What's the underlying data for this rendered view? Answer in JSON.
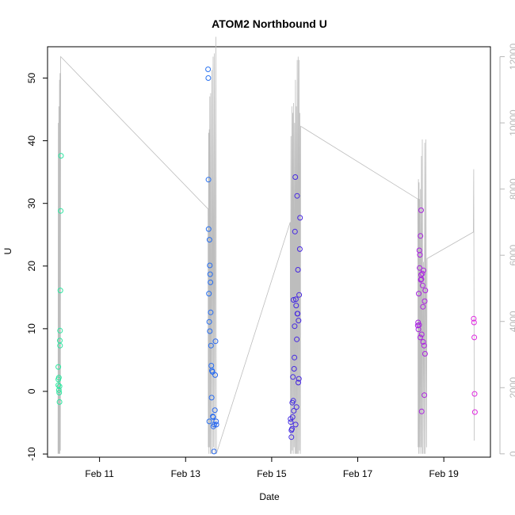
{
  "chart_data": {
    "type": "scatter",
    "title": "ATOM2 Northbound U",
    "xlabel": "Date",
    "ylabel": "U",
    "xlim": [
      "2013-02-09 19:00",
      "2013-02-20 02:00"
    ],
    "ylim": [
      -10.5,
      55
    ],
    "x_ticks": [
      "Feb 11",
      "Feb 13",
      "Feb 15",
      "Feb 17",
      "Feb 19"
    ],
    "x_tick_dates": [
      "2013-02-11 00:00",
      "2013-02-13 00:00",
      "2013-02-15 00:00",
      "2013-02-17 00:00",
      "2013-02-19 00:00"
    ],
    "y_ticks": [
      -10,
      0,
      10,
      20,
      30,
      40,
      50
    ],
    "y2_ticks": [
      0,
      2000,
      4000,
      6000,
      8000,
      10000,
      12000
    ],
    "y2lim": [
      -100,
      12300
    ],
    "grid": false,
    "legend": "none",
    "colors": {
      "secondary_line": "#bdbdbd",
      "right_axis": "#b8b8b8",
      "axis": "#000000",
      "point_gradient": [
        "#2ee8a0",
        "#21c7ee",
        "#2a5cf0",
        "#4a1fe0",
        "#8c1fe0",
        "#e029e0"
      ]
    },
    "series": [
      {
        "marker": "open-circle",
        "color_by": "time",
        "points": [
          [
            "2013-02-10 01:00",
            1.9
          ],
          [
            "2013-02-10 01:00",
            3.9
          ],
          [
            "2013-02-10 01:00",
            1.0
          ],
          [
            "2013-02-10 01:20",
            2.2
          ],
          [
            "2013-02-10 01:20",
            0.2
          ],
          [
            "2013-02-10 01:30",
            -0.2
          ],
          [
            "2013-02-10 01:40",
            0.8
          ],
          [
            "2013-02-10 01:40",
            -1.7
          ],
          [
            "2013-02-10 01:50",
            8.1
          ],
          [
            "2013-02-10 02:00",
            9.7
          ],
          [
            "2013-02-10 02:00",
            7.3
          ],
          [
            "2013-02-10 02:10",
            16.1
          ],
          [
            "2013-02-10 02:20",
            28.8
          ],
          [
            "2013-02-10 02:30",
            37.6
          ],
          [
            "2013-02-13 12:30",
            51.4
          ],
          [
            "2013-02-13 12:40",
            50.0
          ],
          [
            "2013-02-13 12:45",
            33.8
          ],
          [
            "2013-02-13 12:50",
            25.9
          ],
          [
            "2013-02-13 13:00",
            15.6
          ],
          [
            "2013-02-13 13:10",
            11.1
          ],
          [
            "2013-02-13 13:10",
            -4.8
          ],
          [
            "2013-02-13 13:20",
            24.2
          ],
          [
            "2013-02-13 13:30",
            20.1
          ],
          [
            "2013-02-13 13:30",
            9.6
          ],
          [
            "2013-02-13 13:40",
            18.7
          ],
          [
            "2013-02-13 13:50",
            17.4
          ],
          [
            "2013-02-13 14:00",
            12.6
          ],
          [
            "2013-02-13 14:10",
            7.3
          ],
          [
            "2013-02-13 14:20",
            4.1
          ],
          [
            "2013-02-13 14:30",
            -1.0
          ],
          [
            "2013-02-13 14:40",
            3.3
          ],
          [
            "2013-02-13 15:00",
            3.1
          ],
          [
            "2013-02-13 15:10",
            -4.0
          ],
          [
            "2013-02-13 15:20",
            -4.1
          ],
          [
            "2013-02-13 15:30",
            -5.6
          ],
          [
            "2013-02-13 15:50",
            -9.6
          ],
          [
            "2013-02-13 16:00",
            -5.3
          ],
          [
            "2013-02-13 16:20",
            -3.0
          ],
          [
            "2013-02-13 16:30",
            2.6
          ],
          [
            "2013-02-13 16:40",
            8.0
          ],
          [
            "2013-02-13 17:00",
            -4.8
          ],
          [
            "2013-02-13 17:10",
            -5.3
          ],
          [
            "2013-02-15 10:30",
            -4.4
          ],
          [
            "2013-02-15 10:40",
            -4.9
          ],
          [
            "2013-02-15 11:00",
            -6.2
          ],
          [
            "2013-02-15 11:00",
            -7.3
          ],
          [
            "2013-02-15 11:20",
            -6.0
          ],
          [
            "2013-02-15 11:30",
            -1.8
          ],
          [
            "2013-02-15 11:40",
            -4.1
          ],
          [
            "2013-02-15 11:50",
            2.3
          ],
          [
            "2013-02-15 12:00",
            -1.5
          ],
          [
            "2013-02-15 12:10",
            14.6
          ],
          [
            "2013-02-15 12:20",
            -3.1
          ],
          [
            "2013-02-15 12:30",
            3.6
          ],
          [
            "2013-02-15 12:40",
            5.4
          ],
          [
            "2013-02-15 12:50",
            10.4
          ],
          [
            "2013-02-15 13:00",
            25.5
          ],
          [
            "2013-02-15 13:10",
            34.2
          ],
          [
            "2013-02-15 13:20",
            -5.3
          ],
          [
            "2013-02-15 13:30",
            14.7
          ],
          [
            "2013-02-15 13:40",
            13.7
          ],
          [
            "2013-02-15 13:50",
            -2.5
          ],
          [
            "2013-02-15 14:00",
            8.3
          ],
          [
            "2013-02-15 14:10",
            31.2
          ],
          [
            "2013-02-15 14:20",
            12.4
          ],
          [
            "2013-02-15 14:30",
            12.4
          ],
          [
            "2013-02-15 14:40",
            19.4
          ],
          [
            "2013-02-15 14:50",
            1.4
          ],
          [
            "2013-02-15 15:00",
            11.3
          ],
          [
            "2013-02-15 15:10",
            2.0
          ],
          [
            "2013-02-15 15:20",
            15.4
          ],
          [
            "2013-02-15 15:40",
            22.7
          ],
          [
            "2013-02-15 15:50",
            27.7
          ],
          [
            "2013-02-18 09:30",
            10.5
          ],
          [
            "2013-02-18 09:40",
            11.0
          ],
          [
            "2013-02-18 09:50",
            9.9
          ],
          [
            "2013-02-18 10:00",
            15.6
          ],
          [
            "2013-02-18 10:10",
            10.6
          ],
          [
            "2013-02-18 10:20",
            22.5
          ],
          [
            "2013-02-18 10:30",
            19.7
          ],
          [
            "2013-02-18 10:40",
            21.8
          ],
          [
            "2013-02-18 10:50",
            8.6
          ],
          [
            "2013-02-18 11:00",
            24.8
          ],
          [
            "2013-02-18 11:10",
            17.8
          ],
          [
            "2013-02-18 11:20",
            28.9
          ],
          [
            "2013-02-18 11:20",
            18.6
          ],
          [
            "2013-02-18 11:30",
            17.9
          ],
          [
            "2013-02-18 11:40",
            9.1
          ],
          [
            "2013-02-18 11:40",
            -3.2
          ],
          [
            "2013-02-18 12:00",
            18.8
          ],
          [
            "2013-02-18 12:10",
            16.9
          ],
          [
            "2013-02-18 12:20",
            13.5
          ],
          [
            "2013-02-18 12:30",
            7.9
          ],
          [
            "2013-02-18 12:40",
            19.3
          ],
          [
            "2013-02-18 13:00",
            7.3
          ],
          [
            "2013-02-18 13:10",
            -0.6
          ],
          [
            "2013-02-18 13:20",
            14.4
          ],
          [
            "2013-02-18 13:30",
            6.0
          ],
          [
            "2013-02-18 13:40",
            16.1
          ],
          [
            "2013-02-19 16:40",
            11.6
          ],
          [
            "2013-02-19 16:50",
            11.0
          ],
          [
            "2013-02-19 17:00",
            8.6
          ],
          [
            "2013-02-19 17:10",
            -0.4
          ],
          [
            "2013-02-19 17:20",
            -3.3
          ]
        ]
      },
      {
        "axis": "right",
        "style": "line",
        "color": "#bdbdbd",
        "points": [
          [
            "2013-02-10 00:50",
            0
          ],
          [
            "2013-02-10 01:00",
            10000
          ],
          [
            "2013-02-10 01:10",
            0
          ],
          [
            "2013-02-10 01:20",
            10500
          ],
          [
            "2013-02-10 01:30",
            0
          ],
          [
            "2013-02-10 01:40",
            11300
          ],
          [
            "2013-02-10 01:50",
            0
          ],
          [
            "2013-02-10 02:00",
            11500
          ],
          [
            "2013-02-10 02:10",
            100
          ],
          [
            "2013-02-10 02:20",
            12000
          ],
          [
            "2013-02-13 12:30",
            7400
          ],
          [
            "2013-02-13 12:40",
            200
          ],
          [
            "2013-02-13 12:50",
            9700
          ],
          [
            "2013-02-13 13:00",
            0
          ],
          [
            "2013-02-13 13:10",
            9800
          ],
          [
            "2013-02-13 13:20",
            200
          ],
          [
            "2013-02-13 13:30",
            10800
          ],
          [
            "2013-02-13 13:50",
            0
          ],
          [
            "2013-02-13 14:00",
            10900
          ],
          [
            "2013-02-13 14:20",
            0
          ],
          [
            "2013-02-13 14:40",
            11600
          ],
          [
            "2013-02-13 15:00",
            0
          ],
          [
            "2013-02-13 15:20",
            12000
          ],
          [
            "2013-02-13 15:40",
            200
          ],
          [
            "2013-02-13 16:00",
            12100
          ],
          [
            "2013-02-13 16:20",
            0
          ],
          [
            "2013-02-13 16:50",
            12600
          ],
          [
            "2013-02-13 17:10",
            0
          ],
          [
            "2013-02-15 10:20",
            7000
          ],
          [
            "2013-02-15 10:30",
            0
          ],
          [
            "2013-02-15 10:45",
            9600
          ],
          [
            "2013-02-15 11:00",
            0
          ],
          [
            "2013-02-15 11:15",
            10500
          ],
          [
            "2013-02-15 11:30",
            100
          ],
          [
            "2013-02-15 11:45",
            10300
          ],
          [
            "2013-02-15 12:00",
            0
          ],
          [
            "2013-02-15 12:15",
            10600
          ],
          [
            "2013-02-15 12:30",
            200
          ],
          [
            "2013-02-15 12:45",
            10000
          ],
          [
            "2013-02-15 13:00",
            0
          ],
          [
            "2013-02-15 13:15",
            11300
          ],
          [
            "2013-02-15 13:30",
            0
          ],
          [
            "2013-02-15 13:45",
            10500
          ],
          [
            "2013-02-15 14:00",
            0
          ],
          [
            "2013-02-15 14:15",
            11900
          ],
          [
            "2013-02-15 14:30",
            0
          ],
          [
            "2013-02-15 14:45",
            12000
          ],
          [
            "2013-02-15 15:00",
            0
          ],
          [
            "2013-02-15 15:15",
            11900
          ],
          [
            "2013-02-15 15:30",
            100
          ],
          [
            "2013-02-15 15:45",
            10300
          ],
          [
            "2013-02-15 16:00",
            0
          ],
          [
            "2013-02-15 16:10",
            9900
          ],
          [
            "2013-02-18 09:30",
            7700
          ],
          [
            "2013-02-18 09:40",
            200
          ],
          [
            "2013-02-18 09:50",
            8300
          ],
          [
            "2013-02-18 10:00",
            0
          ],
          [
            "2013-02-18 10:10",
            8200
          ],
          [
            "2013-02-18 10:20",
            200
          ],
          [
            "2013-02-18 10:30",
            7700
          ],
          [
            "2013-02-18 10:45",
            0
          ],
          [
            "2013-02-18 11:00",
            8000
          ],
          [
            "2013-02-18 11:15",
            200
          ],
          [
            "2013-02-18 11:30",
            9000
          ],
          [
            "2013-02-18 11:45",
            0
          ],
          [
            "2013-02-18 12:00",
            9500
          ],
          [
            "2013-02-18 12:20",
            0
          ],
          [
            "2013-02-18 12:40",
            5800
          ],
          [
            "2013-02-18 13:00",
            0
          ],
          [
            "2013-02-18 13:20",
            9400
          ],
          [
            "2013-02-18 13:40",
            0
          ],
          [
            "2013-02-18 14:00",
            9500
          ],
          [
            "2013-02-18 14:20",
            200
          ],
          [
            "2013-02-18 14:40",
            5900
          ],
          [
            "2013-02-19 16:30",
            6700
          ],
          [
            "2013-02-19 16:40",
            8600
          ],
          [
            "2013-02-19 17:00",
            400
          ]
        ]
      }
    ]
  }
}
